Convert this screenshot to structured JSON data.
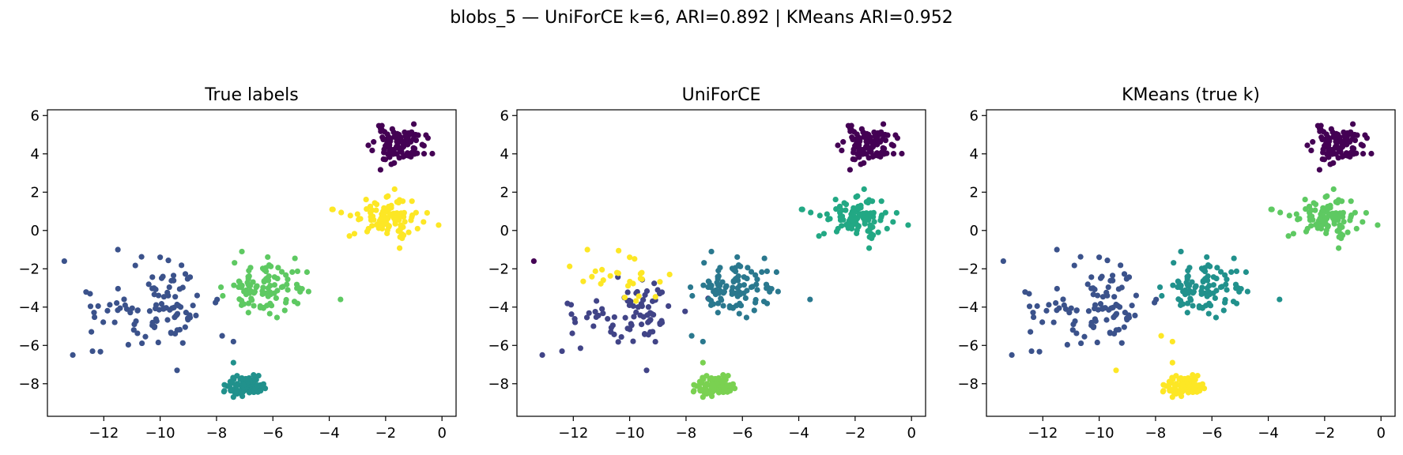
{
  "figure": {
    "title": "blobs_5 — UniForCE k=6, ARI=0.892 | KMeans ARI=0.952"
  },
  "palette": {
    "c_purple": "#440154",
    "c_navy": "#3b528b",
    "c_teal": "#21918c",
    "c_green": "#5ec962",
    "c_yellow": "#fde725",
    "k_navy": "#414487",
    "k_teal": "#2a788e",
    "k_seagreen": "#22a884",
    "k_lime": "#7ad151"
  },
  "chart_data": [
    {
      "type": "scatter",
      "title": "True labels",
      "xlim": [
        -14,
        0.5
      ],
      "ylim": [
        -9.7,
        6.3
      ],
      "xticks": [
        -12,
        -10,
        -8,
        -6,
        -4,
        -2,
        0
      ],
      "yticks": [
        -8,
        -6,
        -4,
        -2,
        0,
        2,
        4,
        6
      ],
      "grid": false,
      "clusters": [
        {
          "color_key": "c_purple",
          "center": [
            -1.55,
            4.45
          ],
          "spread": [
            0.45,
            0.45
          ],
          "n": 100,
          "seed": 11
        },
        {
          "color_key": "c_yellow",
          "center": [
            -2.0,
            0.75
          ],
          "spread": [
            0.6,
            0.5
          ],
          "n": 100,
          "seed": 22
        },
        {
          "color_key": "c_navy",
          "center": [
            -10.2,
            -4.0
          ],
          "spread": [
            1.1,
            1.0
          ],
          "n": 100,
          "seed": 33
        },
        {
          "color_key": "c_green",
          "center": [
            -6.4,
            -3.1
          ],
          "spread": [
            0.75,
            0.7
          ],
          "n": 100,
          "seed": 44
        },
        {
          "color_key": "c_teal",
          "center": [
            -7.0,
            -8.1
          ],
          "spread": [
            0.3,
            0.25
          ],
          "n": 100,
          "seed": 55
        }
      ],
      "points": [
        {
          "x": -13.4,
          "y": -1.6,
          "color_key": "c_navy"
        },
        {
          "x": -13.1,
          "y": -6.5,
          "color_key": "c_navy"
        },
        {
          "x": -12.4,
          "y": -6.3,
          "color_key": "c_navy"
        },
        {
          "x": -11.5,
          "y": -1.0,
          "color_key": "c_navy"
        },
        {
          "x": -9.4,
          "y": -7.3,
          "color_key": "c_navy"
        },
        {
          "x": -10.0,
          "y": -1.4,
          "color_key": "c_navy"
        },
        {
          "x": -7.8,
          "y": -5.5,
          "color_key": "c_navy"
        },
        {
          "x": -7.4,
          "y": -5.8,
          "color_key": "c_navy"
        },
        {
          "x": -3.6,
          "y": -3.6,
          "color_key": "c_green"
        },
        {
          "x": -7.4,
          "y": -6.9,
          "color_key": "c_teal"
        },
        {
          "x": -3.9,
          "y": 1.1,
          "color_key": "c_yellow"
        },
        {
          "x": -7.1,
          "y": -1.1,
          "color_key": "c_green"
        }
      ]
    },
    {
      "type": "scatter",
      "title": "UniForCE",
      "xlim": [
        -14,
        0.5
      ],
      "ylim": [
        -9.7,
        6.3
      ],
      "xticks": [
        -12,
        -10,
        -8,
        -6,
        -4,
        -2,
        0
      ],
      "yticks": [
        -8,
        -6,
        -4,
        -2,
        0,
        2,
        4,
        6
      ],
      "grid": false,
      "clusters": [
        {
          "color_key": "c_purple",
          "center": [
            -1.55,
            4.45
          ],
          "spread": [
            0.45,
            0.45
          ],
          "n": 100,
          "seed": 11
        },
        {
          "color_key": "k_seagreen",
          "center": [
            -2.0,
            0.75
          ],
          "spread": [
            0.6,
            0.5
          ],
          "n": 100,
          "seed": 22
        },
        {
          "color_key": "k_navy",
          "center": [
            -10.0,
            -4.4
          ],
          "spread": [
            1.0,
            0.75
          ],
          "n": 80,
          "seed": 33
        },
        {
          "color_key": "c_yellow",
          "center": [
            -10.3,
            -2.6
          ],
          "spread": [
            0.7,
            0.45
          ],
          "n": 25,
          "seed": 66
        },
        {
          "color_key": "k_teal",
          "center": [
            -6.4,
            -3.1
          ],
          "spread": [
            0.75,
            0.7
          ],
          "n": 100,
          "seed": 44
        },
        {
          "color_key": "k_lime",
          "center": [
            -7.0,
            -8.1
          ],
          "spread": [
            0.3,
            0.25
          ],
          "n": 100,
          "seed": 55
        }
      ],
      "points": [
        {
          "x": -13.4,
          "y": -1.6,
          "color_key": "c_purple"
        },
        {
          "x": -13.1,
          "y": -6.5,
          "color_key": "k_navy"
        },
        {
          "x": -12.4,
          "y": -6.3,
          "color_key": "k_navy"
        },
        {
          "x": -11.5,
          "y": -1.0,
          "color_key": "c_yellow"
        },
        {
          "x": -9.4,
          "y": -7.3,
          "color_key": "k_navy"
        },
        {
          "x": -10.0,
          "y": -1.4,
          "color_key": "c_yellow"
        },
        {
          "x": -7.8,
          "y": -5.5,
          "color_key": "k_teal"
        },
        {
          "x": -7.4,
          "y": -5.8,
          "color_key": "k_teal"
        },
        {
          "x": -3.6,
          "y": -3.6,
          "color_key": "k_teal"
        },
        {
          "x": -7.4,
          "y": -6.9,
          "color_key": "k_lime"
        },
        {
          "x": -3.9,
          "y": 1.1,
          "color_key": "k_seagreen"
        },
        {
          "x": -7.1,
          "y": -1.1,
          "color_key": "k_teal"
        }
      ]
    },
    {
      "type": "scatter",
      "title": "KMeans (true k)",
      "xlim": [
        -14,
        0.5
      ],
      "ylim": [
        -9.7,
        6.3
      ],
      "xticks": [
        -12,
        -10,
        -8,
        -6,
        -4,
        -2,
        0
      ],
      "yticks": [
        -8,
        -6,
        -4,
        -2,
        0,
        2,
        4,
        6
      ],
      "grid": false,
      "clusters": [
        {
          "color_key": "c_purple",
          "center": [
            -1.55,
            4.45
          ],
          "spread": [
            0.45,
            0.45
          ],
          "n": 100,
          "seed": 11
        },
        {
          "color_key": "c_green",
          "center": [
            -2.0,
            0.75
          ],
          "spread": [
            0.6,
            0.5
          ],
          "n": 100,
          "seed": 22
        },
        {
          "color_key": "c_navy",
          "center": [
            -10.2,
            -4.0
          ],
          "spread": [
            1.1,
            1.0
          ],
          "n": 100,
          "seed": 33
        },
        {
          "color_key": "c_teal",
          "center": [
            -6.4,
            -3.1
          ],
          "spread": [
            0.75,
            0.7
          ],
          "n": 100,
          "seed": 44
        },
        {
          "color_key": "c_yellow",
          "center": [
            -7.0,
            -8.1
          ],
          "spread": [
            0.3,
            0.25
          ],
          "n": 100,
          "seed": 55
        }
      ],
      "points": [
        {
          "x": -13.4,
          "y": -1.6,
          "color_key": "c_navy"
        },
        {
          "x": -13.1,
          "y": -6.5,
          "color_key": "c_navy"
        },
        {
          "x": -12.4,
          "y": -6.3,
          "color_key": "c_navy"
        },
        {
          "x": -11.5,
          "y": -1.0,
          "color_key": "c_navy"
        },
        {
          "x": -9.4,
          "y": -7.3,
          "color_key": "c_yellow"
        },
        {
          "x": -10.0,
          "y": -1.4,
          "color_key": "c_navy"
        },
        {
          "x": -7.8,
          "y": -5.5,
          "color_key": "c_yellow"
        },
        {
          "x": -7.4,
          "y": -5.8,
          "color_key": "c_yellow"
        },
        {
          "x": -3.6,
          "y": -3.6,
          "color_key": "c_teal"
        },
        {
          "x": -7.4,
          "y": -6.9,
          "color_key": "c_yellow"
        },
        {
          "x": -3.9,
          "y": 1.1,
          "color_key": "c_green"
        },
        {
          "x": -7.1,
          "y": -1.1,
          "color_key": "c_teal"
        }
      ]
    }
  ]
}
